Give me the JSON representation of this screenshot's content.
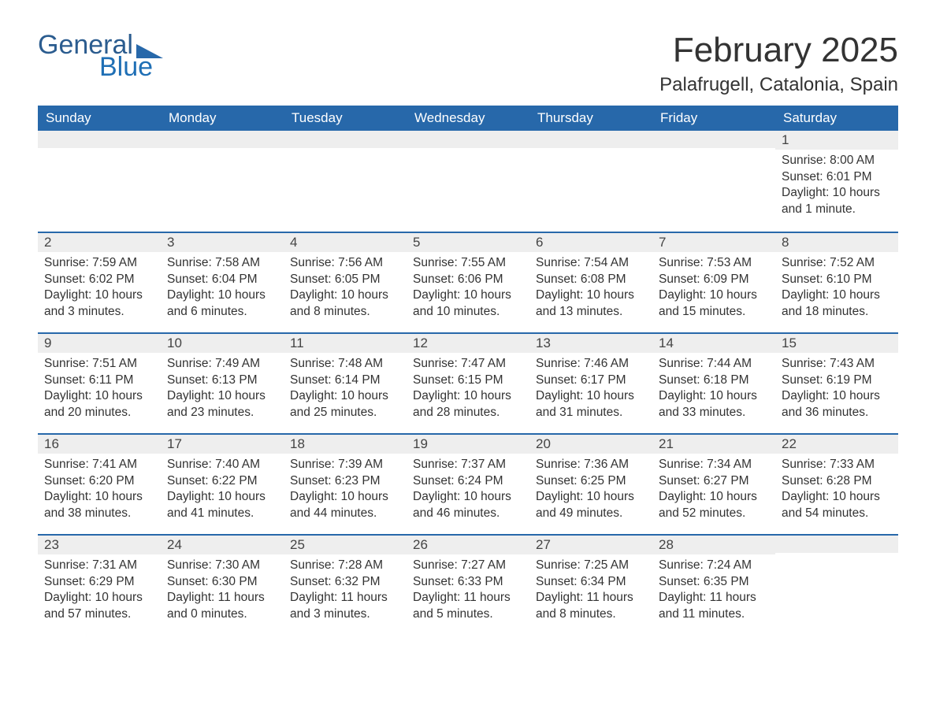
{
  "brand": {
    "text1": "General",
    "text2": "Blue",
    "color_general": "#2b5c8f",
    "color_blue": "#1f6fb5",
    "triangle_color": "#2768aa"
  },
  "header": {
    "title": "February 2025",
    "location": "Palafrugell, Catalonia, Spain"
  },
  "calendar": {
    "header_bg": "#2768aa",
    "header_fg": "#ffffff",
    "daynum_bg": "#eeeeee",
    "week_border": "#2768aa",
    "columns": [
      "Sunday",
      "Monday",
      "Tuesday",
      "Wednesday",
      "Thursday",
      "Friday",
      "Saturday"
    ],
    "weeks": [
      [
        {
          "n": "",
          "sunrise": "",
          "sunset": "",
          "daylight1": "",
          "daylight2": ""
        },
        {
          "n": "",
          "sunrise": "",
          "sunset": "",
          "daylight1": "",
          "daylight2": ""
        },
        {
          "n": "",
          "sunrise": "",
          "sunset": "",
          "daylight1": "",
          "daylight2": ""
        },
        {
          "n": "",
          "sunrise": "",
          "sunset": "",
          "daylight1": "",
          "daylight2": ""
        },
        {
          "n": "",
          "sunrise": "",
          "sunset": "",
          "daylight1": "",
          "daylight2": ""
        },
        {
          "n": "",
          "sunrise": "",
          "sunset": "",
          "daylight1": "",
          "daylight2": ""
        },
        {
          "n": "1",
          "sunrise": "Sunrise: 8:00 AM",
          "sunset": "Sunset: 6:01 PM",
          "daylight1": "Daylight: 10 hours",
          "daylight2": "and 1 minute."
        }
      ],
      [
        {
          "n": "2",
          "sunrise": "Sunrise: 7:59 AM",
          "sunset": "Sunset: 6:02 PM",
          "daylight1": "Daylight: 10 hours",
          "daylight2": "and 3 minutes."
        },
        {
          "n": "3",
          "sunrise": "Sunrise: 7:58 AM",
          "sunset": "Sunset: 6:04 PM",
          "daylight1": "Daylight: 10 hours",
          "daylight2": "and 6 minutes."
        },
        {
          "n": "4",
          "sunrise": "Sunrise: 7:56 AM",
          "sunset": "Sunset: 6:05 PM",
          "daylight1": "Daylight: 10 hours",
          "daylight2": "and 8 minutes."
        },
        {
          "n": "5",
          "sunrise": "Sunrise: 7:55 AM",
          "sunset": "Sunset: 6:06 PM",
          "daylight1": "Daylight: 10 hours",
          "daylight2": "and 10 minutes."
        },
        {
          "n": "6",
          "sunrise": "Sunrise: 7:54 AM",
          "sunset": "Sunset: 6:08 PM",
          "daylight1": "Daylight: 10 hours",
          "daylight2": "and 13 minutes."
        },
        {
          "n": "7",
          "sunrise": "Sunrise: 7:53 AM",
          "sunset": "Sunset: 6:09 PM",
          "daylight1": "Daylight: 10 hours",
          "daylight2": "and 15 minutes."
        },
        {
          "n": "8",
          "sunrise": "Sunrise: 7:52 AM",
          "sunset": "Sunset: 6:10 PM",
          "daylight1": "Daylight: 10 hours",
          "daylight2": "and 18 minutes."
        }
      ],
      [
        {
          "n": "9",
          "sunrise": "Sunrise: 7:51 AM",
          "sunset": "Sunset: 6:11 PM",
          "daylight1": "Daylight: 10 hours",
          "daylight2": "and 20 minutes."
        },
        {
          "n": "10",
          "sunrise": "Sunrise: 7:49 AM",
          "sunset": "Sunset: 6:13 PM",
          "daylight1": "Daylight: 10 hours",
          "daylight2": "and 23 minutes."
        },
        {
          "n": "11",
          "sunrise": "Sunrise: 7:48 AM",
          "sunset": "Sunset: 6:14 PM",
          "daylight1": "Daylight: 10 hours",
          "daylight2": "and 25 minutes."
        },
        {
          "n": "12",
          "sunrise": "Sunrise: 7:47 AM",
          "sunset": "Sunset: 6:15 PM",
          "daylight1": "Daylight: 10 hours",
          "daylight2": "and 28 minutes."
        },
        {
          "n": "13",
          "sunrise": "Sunrise: 7:46 AM",
          "sunset": "Sunset: 6:17 PM",
          "daylight1": "Daylight: 10 hours",
          "daylight2": "and 31 minutes."
        },
        {
          "n": "14",
          "sunrise": "Sunrise: 7:44 AM",
          "sunset": "Sunset: 6:18 PM",
          "daylight1": "Daylight: 10 hours",
          "daylight2": "and 33 minutes."
        },
        {
          "n": "15",
          "sunrise": "Sunrise: 7:43 AM",
          "sunset": "Sunset: 6:19 PM",
          "daylight1": "Daylight: 10 hours",
          "daylight2": "and 36 minutes."
        }
      ],
      [
        {
          "n": "16",
          "sunrise": "Sunrise: 7:41 AM",
          "sunset": "Sunset: 6:20 PM",
          "daylight1": "Daylight: 10 hours",
          "daylight2": "and 38 minutes."
        },
        {
          "n": "17",
          "sunrise": "Sunrise: 7:40 AM",
          "sunset": "Sunset: 6:22 PM",
          "daylight1": "Daylight: 10 hours",
          "daylight2": "and 41 minutes."
        },
        {
          "n": "18",
          "sunrise": "Sunrise: 7:39 AM",
          "sunset": "Sunset: 6:23 PM",
          "daylight1": "Daylight: 10 hours",
          "daylight2": "and 44 minutes."
        },
        {
          "n": "19",
          "sunrise": "Sunrise: 7:37 AM",
          "sunset": "Sunset: 6:24 PM",
          "daylight1": "Daylight: 10 hours",
          "daylight2": "and 46 minutes."
        },
        {
          "n": "20",
          "sunrise": "Sunrise: 7:36 AM",
          "sunset": "Sunset: 6:25 PM",
          "daylight1": "Daylight: 10 hours",
          "daylight2": "and 49 minutes."
        },
        {
          "n": "21",
          "sunrise": "Sunrise: 7:34 AM",
          "sunset": "Sunset: 6:27 PM",
          "daylight1": "Daylight: 10 hours",
          "daylight2": "and 52 minutes."
        },
        {
          "n": "22",
          "sunrise": "Sunrise: 7:33 AM",
          "sunset": "Sunset: 6:28 PM",
          "daylight1": "Daylight: 10 hours",
          "daylight2": "and 54 minutes."
        }
      ],
      [
        {
          "n": "23",
          "sunrise": "Sunrise: 7:31 AM",
          "sunset": "Sunset: 6:29 PM",
          "daylight1": "Daylight: 10 hours",
          "daylight2": "and 57 minutes."
        },
        {
          "n": "24",
          "sunrise": "Sunrise: 7:30 AM",
          "sunset": "Sunset: 6:30 PM",
          "daylight1": "Daylight: 11 hours",
          "daylight2": "and 0 minutes."
        },
        {
          "n": "25",
          "sunrise": "Sunrise: 7:28 AM",
          "sunset": "Sunset: 6:32 PM",
          "daylight1": "Daylight: 11 hours",
          "daylight2": "and 3 minutes."
        },
        {
          "n": "26",
          "sunrise": "Sunrise: 7:27 AM",
          "sunset": "Sunset: 6:33 PM",
          "daylight1": "Daylight: 11 hours",
          "daylight2": "and 5 minutes."
        },
        {
          "n": "27",
          "sunrise": "Sunrise: 7:25 AM",
          "sunset": "Sunset: 6:34 PM",
          "daylight1": "Daylight: 11 hours",
          "daylight2": "and 8 minutes."
        },
        {
          "n": "28",
          "sunrise": "Sunrise: 7:24 AM",
          "sunset": "Sunset: 6:35 PM",
          "daylight1": "Daylight: 11 hours",
          "daylight2": "and 11 minutes."
        },
        {
          "n": "",
          "sunrise": "",
          "sunset": "",
          "daylight1": "",
          "daylight2": ""
        }
      ]
    ]
  }
}
